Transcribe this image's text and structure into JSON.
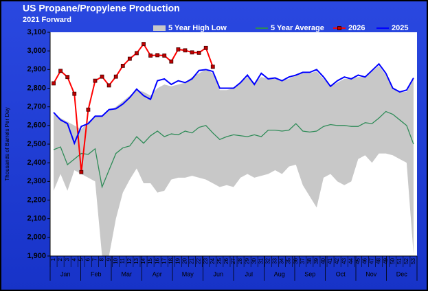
{
  "chart_data": {
    "type": "line",
    "title": "US Propane/Propylene Production",
    "subtitle": "2021 Forward",
    "y_label": "Thousands of Barrels Per Day",
    "categories": [
      "1",
      "2",
      "3",
      "4",
      "5",
      "6",
      "7",
      "8",
      "9",
      "10",
      "11",
      "12",
      "13",
      "14",
      "15",
      "16",
      "17",
      "18",
      "19",
      "20",
      "21",
      "22",
      "23",
      "24",
      "25",
      "26",
      "27",
      "28",
      "29",
      "30",
      "31",
      "32",
      "33",
      "34",
      "35",
      "36",
      "37",
      "38",
      "39",
      "40",
      "41",
      "42",
      "43",
      "44",
      "45",
      "46",
      "47",
      "48",
      "49",
      "50",
      "51",
      "52",
      "53"
    ],
    "months": [
      "Jan",
      "Feb",
      "Mar",
      "Apr",
      "May",
      "Jun",
      "Jul",
      "Aug",
      "Sep",
      "Oct",
      "Nov",
      "Dec"
    ],
    "ylim": [
      1900,
      3100
    ],
    "yticks": [
      {
        "value": 1900,
        "label": "1,900"
      },
      {
        "value": 2000,
        "label": "2,000"
      },
      {
        "value": 2100,
        "label": "2,100"
      },
      {
        "value": 2200,
        "label": "2,200"
      },
      {
        "value": 2300,
        "label": "2,300"
      },
      {
        "value": 2400,
        "label": "2,400"
      },
      {
        "value": 2500,
        "label": "2,500"
      },
      {
        "value": 2600,
        "label": "2,600"
      },
      {
        "value": 2700,
        "label": "2,700"
      },
      {
        "value": 2800,
        "label": "2,800"
      },
      {
        "value": 2900,
        "label": "2,900"
      },
      {
        "value": 3000,
        "label": "3,000"
      },
      {
        "value": 3100,
        "label": "3,100"
      }
    ],
    "grid": false,
    "series": [
      {
        "name": "5 Year High Low",
        "color": "#c8c8c8",
        "type": "band",
        "high": [
          2660,
          2640,
          2620,
          2600,
          2580,
          2620,
          2650,
          2650,
          2680,
          2700,
          2730,
          2760,
          2790,
          2780,
          2760,
          2800,
          2820,
          2810,
          2820,
          2830,
          2860,
          2880,
          2900,
          2880,
          2790,
          2790,
          2800,
          2830,
          2860,
          2830,
          2860,
          2850,
          2850,
          2840,
          2850,
          2870,
          2880,
          2880,
          2890,
          2850,
          2810,
          2830,
          2850,
          2850,
          2860,
          2860,
          2890,
          2920,
          2870,
          2800,
          2780,
          2780,
          2850
        ],
        "low": [
          2250,
          2340,
          2250,
          2360,
          2340,
          2320,
          2300,
          1900,
          1900,
          2100,
          2240,
          2310,
          2370,
          2290,
          2290,
          2240,
          2250,
          2310,
          2320,
          2320,
          2330,
          2320,
          2310,
          2290,
          2270,
          2280,
          2270,
          2320,
          2340,
          2320,
          2330,
          2340,
          2360,
          2340,
          2380,
          2390,
          2280,
          2220,
          2160,
          2320,
          2340,
          2300,
          2280,
          2300,
          2420,
          2440,
          2400,
          2450,
          2450,
          2440,
          2420,
          2400,
          1910
        ]
      },
      {
        "name": "5 Year Average",
        "color": "#2e8b57",
        "type": "line",
        "values": [
          2470,
          2485,
          2390,
          2420,
          2450,
          2445,
          2475,
          2270,
          2360,
          2450,
          2480,
          2490,
          2540,
          2505,
          2545,
          2570,
          2540,
          2555,
          2550,
          2570,
          2560,
          2590,
          2600,
          2560,
          2525,
          2540,
          2550,
          2545,
          2540,
          2550,
          2540,
          2575,
          2575,
          2570,
          2575,
          2610,
          2570,
          2565,
          2570,
          2595,
          2605,
          2600,
          2600,
          2595,
          2595,
          2615,
          2610,
          2640,
          2675,
          2660,
          2630,
          2600,
          2500
        ]
      },
      {
        "name": "2026",
        "color": "#ff0000",
        "type": "line",
        "marker": "square",
        "values": [
          2826,
          2893,
          2860,
          2770,
          2350,
          2685,
          2840,
          2862,
          2815,
          2862,
          2920,
          2958,
          2988,
          3037,
          2975,
          2977,
          2975,
          2943,
          3008,
          3003,
          2992,
          2990,
          3016,
          2915,
          null,
          null,
          null,
          null,
          null,
          null,
          null,
          null,
          null,
          null,
          null,
          null,
          null,
          null,
          null,
          null,
          null,
          null,
          null,
          null,
          null,
          null,
          null,
          null,
          null,
          null,
          null,
          null,
          null
        ]
      },
      {
        "name": "2025",
        "color": "#0000ff",
        "type": "line",
        "values": [
          2670,
          2630,
          2610,
          2505,
          2595,
          2610,
          2650,
          2650,
          2685,
          2690,
          2715,
          2750,
          2795,
          2760,
          2740,
          2840,
          2850,
          2820,
          2840,
          2830,
          2850,
          2895,
          2900,
          2890,
          2800,
          2800,
          2800,
          2830,
          2870,
          2820,
          2880,
          2850,
          2855,
          2840,
          2860,
          2870,
          2885,
          2885,
          2900,
          2860,
          2810,
          2840,
          2860,
          2850,
          2870,
          2860,
          2895,
          2930,
          2880,
          2800,
          2780,
          2790,
          2855
        ]
      }
    ]
  }
}
